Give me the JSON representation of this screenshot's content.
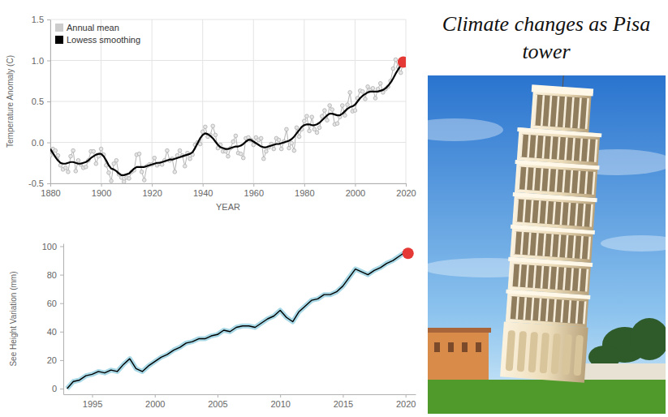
{
  "title": "Climate changes as Pisa tower",
  "chart_data": [
    {
      "type": "line",
      "xlabel": "YEAR",
      "ylabel": "Temperature Anomaly (C)",
      "xlim": [
        1880,
        2020
      ],
      "ylim": [
        -0.5,
        1.5
      ],
      "xticks": [
        1880,
        1900,
        1920,
        1940,
        1960,
        1980,
        2000,
        2020
      ],
      "yticks": [
        -0.5,
        {
          "value": 0,
          "label": "0.0"
        },
        0.5,
        {
          "value": 1,
          "label": "1.0"
        },
        1.5
      ],
      "grid": true,
      "legend": "top-left",
      "x": [
        1880,
        1881,
        1882,
        1883,
        1884,
        1885,
        1886,
        1887,
        1888,
        1889,
        1890,
        1891,
        1892,
        1893,
        1894,
        1895,
        1896,
        1897,
        1898,
        1899,
        1900,
        1901,
        1902,
        1903,
        1904,
        1905,
        1906,
        1907,
        1908,
        1909,
        1910,
        1911,
        1912,
        1913,
        1914,
        1915,
        1916,
        1917,
        1918,
        1919,
        1920,
        1921,
        1922,
        1923,
        1924,
        1925,
        1926,
        1927,
        1928,
        1929,
        1930,
        1931,
        1932,
        1933,
        1934,
        1935,
        1936,
        1937,
        1938,
        1939,
        1940,
        1941,
        1942,
        1943,
        1944,
        1945,
        1946,
        1947,
        1948,
        1949,
        1950,
        1951,
        1952,
        1953,
        1954,
        1955,
        1956,
        1957,
        1958,
        1959,
        1960,
        1961,
        1962,
        1963,
        1964,
        1965,
        1966,
        1967,
        1968,
        1969,
        1970,
        1971,
        1972,
        1973,
        1974,
        1975,
        1976,
        1977,
        1978,
        1979,
        1980,
        1981,
        1982,
        1983,
        1984,
        1985,
        1986,
        1987,
        1988,
        1989,
        1990,
        1991,
        1992,
        1993,
        1994,
        1995,
        1996,
        1997,
        1998,
        1999,
        2000,
        2001,
        2002,
        2003,
        2004,
        2005,
        2006,
        2007,
        2008,
        2009,
        2010,
        2011,
        2012,
        2013,
        2014,
        2015,
        2016,
        2017,
        2018,
        2019
      ],
      "series": [
        {
          "name": "Annual mean",
          "color": "#b4b4b4",
          "marker": "circle",
          "line_style": "solid",
          "values": [
            -0.16,
            -0.08,
            -0.1,
            -0.16,
            -0.28,
            -0.33,
            -0.31,
            -0.36,
            -0.17,
            -0.1,
            -0.35,
            -0.22,
            -0.27,
            -0.31,
            -0.3,
            -0.22,
            -0.11,
            -0.11,
            -0.26,
            -0.17,
            -0.08,
            -0.15,
            -0.28,
            -0.37,
            -0.47,
            -0.26,
            -0.22,
            -0.39,
            -0.43,
            -0.48,
            -0.43,
            -0.44,
            -0.36,
            -0.34,
            -0.15,
            -0.14,
            -0.36,
            -0.46,
            -0.29,
            -0.27,
            -0.27,
            -0.19,
            -0.28,
            -0.26,
            -0.27,
            -0.22,
            -0.1,
            -0.22,
            -0.2,
            -0.36,
            -0.16,
            -0.1,
            -0.16,
            -0.29,
            -0.13,
            -0.2,
            -0.15,
            -0.03,
            0,
            -0.02,
            0.13,
            0.19,
            0.07,
            0.09,
            0.2,
            0.09,
            -0.07,
            -0.03,
            -0.11,
            -0.11,
            -0.17,
            -0.07,
            0.01,
            0.08,
            -0.13,
            -0.14,
            -0.19,
            0.05,
            0.06,
            0.03,
            -0.03,
            0.06,
            0.03,
            0.05,
            -0.2,
            -0.11,
            -0.06,
            -0.02,
            -0.08,
            0.05,
            0.03,
            -0.08,
            0.01,
            0.16,
            -0.07,
            -0.01,
            -0.1,
            0.18,
            0.07,
            0.16,
            0.26,
            0.32,
            0.14,
            0.31,
            0.16,
            0.12,
            0.18,
            0.32,
            0.39,
            0.27,
            0.45,
            0.4,
            0.22,
            0.23,
            0.31,
            0.45,
            0.33,
            0.46,
            0.61,
            0.38,
            0.39,
            0.54,
            0.63,
            0.62,
            0.53,
            0.68,
            0.64,
            0.66,
            0.54,
            0.65,
            0.72,
            0.61,
            0.65,
            0.68,
            0.75,
            0.9,
            1.01,
            0.92,
            0.85,
            0.98
          ]
        },
        {
          "name": "Lowess smoothing",
          "color": "#000000",
          "line_style": "solid",
          "values": [
            -0.08,
            -0.13,
            -0.18,
            -0.22,
            -0.25,
            -0.26,
            -0.26,
            -0.25,
            -0.24,
            -0.24,
            -0.25,
            -0.26,
            -0.26,
            -0.25,
            -0.24,
            -0.22,
            -0.19,
            -0.17,
            -0.15,
            -0.14,
            -0.14,
            -0.17,
            -0.22,
            -0.28,
            -0.32,
            -0.33,
            -0.35,
            -0.38,
            -0.4,
            -0.4,
            -0.39,
            -0.38,
            -0.35,
            -0.32,
            -0.3,
            -0.3,
            -0.3,
            -0.3,
            -0.29,
            -0.28,
            -0.27,
            -0.26,
            -0.25,
            -0.25,
            -0.24,
            -0.23,
            -0.22,
            -0.21,
            -0.21,
            -0.2,
            -0.19,
            -0.18,
            -0.17,
            -0.16,
            -0.15,
            -0.14,
            -0.12,
            -0.07,
            -0.01,
            0.05,
            0.09,
            0.11,
            0.1,
            0.08,
            0.05,
            0.01,
            -0.03,
            -0.06,
            -0.07,
            -0.08,
            -0.08,
            -0.07,
            -0.06,
            -0.05,
            -0.05,
            -0.04,
            -0.02,
            0.01,
            0.03,
            0.03,
            0.01,
            -0.01,
            -0.03,
            -0.05,
            -0.06,
            -0.06,
            -0.05,
            -0.04,
            -0.03,
            -0.02,
            -0.02,
            -0.01,
            0,
            0.01,
            0.02,
            0.04,
            0.07,
            0.11,
            0.15,
            0.19,
            0.21,
            0.22,
            0.22,
            0.21,
            0.21,
            0.22,
            0.24,
            0.27,
            0.3,
            0.33,
            0.35,
            0.35,
            0.34,
            0.33,
            0.33,
            0.35,
            0.38,
            0.41,
            0.43,
            0.44,
            0.46,
            0.5,
            0.54,
            0.57,
            0.59,
            0.61,
            0.62,
            0.62,
            0.62,
            0.62,
            0.63,
            0.64,
            0.66,
            0.69,
            0.73,
            0.78,
            0.84,
            0.89,
            0.94,
            0.98
          ]
        }
      ],
      "highlight_point": {
        "x": 2019,
        "y": 0.98,
        "color": "#e53935"
      }
    },
    {
      "type": "line",
      "ylabel": "See Height Variation (mm)",
      "xlim": [
        1992.7,
        2020.8
      ],
      "ylim": [
        -4,
        102
      ],
      "xticks": [
        1995,
        2000,
        2005,
        2010,
        2015,
        2020
      ],
      "yticks": [
        0,
        20,
        40,
        60,
        80,
        100
      ],
      "grid": false,
      "color": "#000000",
      "x": [
        1993,
        1993.5,
        1994,
        1994.5,
        1995,
        1995.5,
        1996,
        1996.5,
        1997,
        1997.5,
        1998,
        1998.5,
        1999,
        1999.5,
        2000,
        2000.5,
        2001,
        2001.5,
        2002,
        2002.5,
        2003,
        2003.5,
        2004,
        2004.5,
        2005,
        2005.5,
        2006,
        2006.5,
        2007,
        2007.5,
        2008,
        2008.5,
        2009,
        2009.5,
        2010,
        2010.5,
        2011,
        2011.5,
        2012,
        2012.5,
        2013,
        2013.5,
        2014,
        2014.5,
        2015,
        2015.5,
        2016,
        2016.5,
        2017,
        2017.5,
        2018,
        2018.5,
        2019,
        2019.5,
        2020
      ],
      "values": [
        0,
        5,
        6,
        9,
        10,
        12,
        11,
        13,
        12,
        17,
        21,
        14,
        12,
        16,
        19,
        22,
        24,
        27,
        29,
        32,
        33,
        35,
        35,
        37,
        38,
        41,
        40,
        43,
        44,
        44,
        43,
        46,
        49,
        51,
        55,
        50,
        47,
        54,
        58,
        62,
        63,
        66,
        66,
        68,
        72,
        78,
        84,
        82,
        80,
        83,
        85,
        88,
        90,
        93,
        96
      ],
      "highlight_point": {
        "x": 2020.2,
        "y": 95,
        "color": "#e53935"
      }
    }
  ]
}
